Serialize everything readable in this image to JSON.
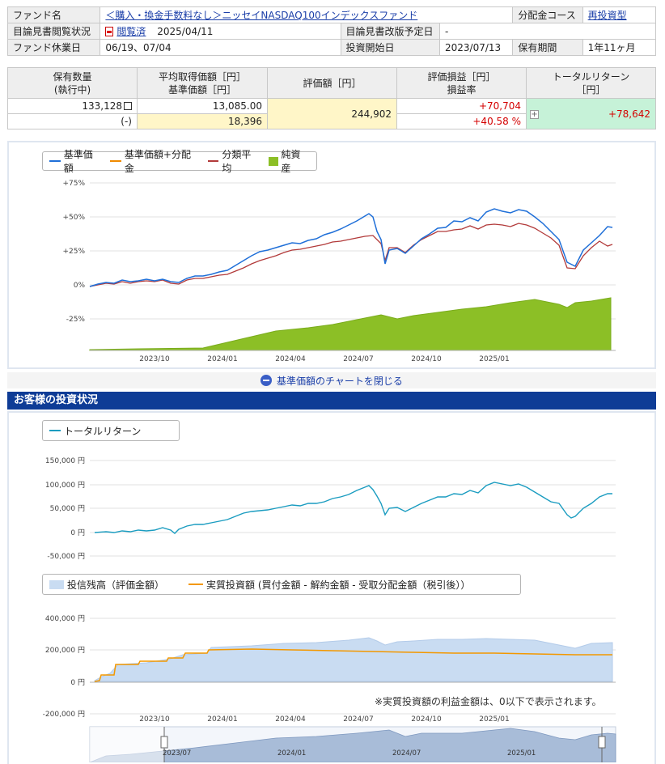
{
  "fund_info": {
    "fund_name_label": "ファンド名",
    "fund_name": "＜購入・換金手数料なし＞ニッセイNASDAQ100インデックスファンド",
    "distribution_course_label": "分配金コース",
    "distribution_course": "再投資型",
    "prospectus_status_label": "目論見書閲覧状況",
    "prospectus_status_link": "閲覧済",
    "prospectus_date": "2025/04/11",
    "prospectus_revision_label": "目論見書改版予定日",
    "prospectus_revision": "-",
    "holiday_label": "ファンド休業日",
    "holiday": "06/19、07/04",
    "start_label": "投資開始日",
    "start": "2023/07/13",
    "period_label": "保有期間",
    "period": "1年11ヶ月"
  },
  "holdings": {
    "qty_label_1": "保有数量",
    "qty_label_2": "(執行中)",
    "avg_label_1": "平均取得価額［円］",
    "avg_label_2": "基準価額［円］",
    "value_label": "評価額［円］",
    "pl_label_1": "評価損益［円］",
    "pl_label_2": "損益率",
    "total_label_1": "トータルリターン",
    "total_label_2": "［円］",
    "qty": "133,128",
    "qty_exec": "(-)",
    "avg_cost": "13,085.00",
    "nav": "18,396",
    "value": "244,902",
    "pl": "+70,704",
    "pl_rate": "+40.58 %",
    "total_return": "+78,642"
  },
  "chart1": {
    "legend": [
      "基準価額",
      "基準価額+分配金",
      "分類平均",
      "純資産"
    ],
    "colors": {
      "nav": "#1f6fd8",
      "nav_dist": "#f08a00",
      "category": "#b23a3a",
      "assets": "#8cbf26"
    },
    "y_ticks": [
      "+75%",
      "+50%",
      "+25%",
      "0%",
      "-25%"
    ],
    "x_ticks": [
      "2023/10",
      "2024/01",
      "2024/04",
      "2024/07",
      "2024/10",
      "2025/01"
    ]
  },
  "close_chart_label": "基準価額のチャートを閉じる",
  "section_title": "お客様の投資状況",
  "chart2": {
    "legend": "トータルリターン",
    "color": "#1a9cc0",
    "y_ticks": [
      "150,000 円",
      "100,000 円",
      "50,000 円",
      "0 円",
      "-50,000 円"
    ]
  },
  "chart3": {
    "legend_balance": "投信残高（評価金額）",
    "legend_invest": "実質投資額 (買付金額 - 解約金額 - 受取分配金額（税引後））",
    "colors": {
      "balance": "#c9dcf2",
      "invest": "#f39800"
    },
    "y_ticks": [
      "400,000 円",
      "200,000 円",
      "0 円",
      "-200,000 円"
    ],
    "x_ticks": [
      "2023/10",
      "2024/01",
      "2024/04",
      "2024/07",
      "2024/10",
      "2025/01"
    ],
    "note": "※実質投資額の利益金額は、0以下で表示されます。"
  },
  "navigator": {
    "x_ticks": [
      "2023/07",
      "2024/01",
      "2024/07",
      "2025/01"
    ]
  }
}
